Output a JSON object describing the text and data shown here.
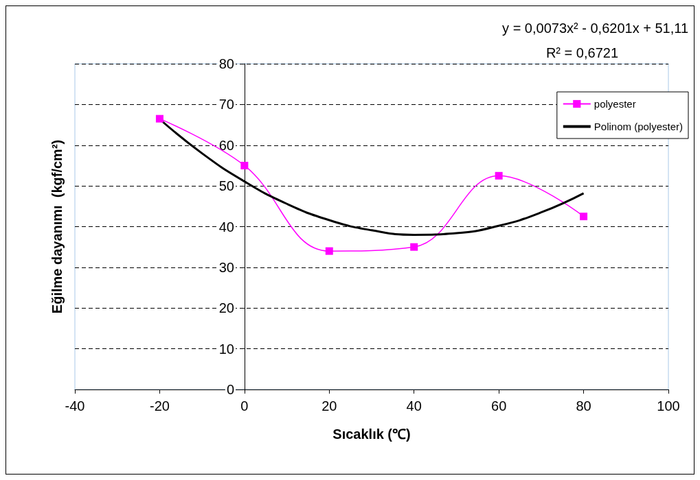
{
  "chart_data": {
    "type": "line",
    "xlabel": "Sıcaklık (℃)",
    "ylabel": "Eğilme dayanımı  (kgf/cm²)",
    "annotations": [
      "y = 0,0073x² - 0,6201x + 51,11",
      "R² = 0,6721"
    ],
    "series": [
      {
        "name": "polyester",
        "color": "#ff00ff",
        "marker": "square",
        "x": [
          -20,
          0,
          20,
          40,
          60,
          80
        ],
        "values": [
          66.5,
          55,
          34,
          35,
          52.5,
          42.5
        ]
      },
      {
        "name": "Polinom (polyester)",
        "color": "#000000",
        "marker": "none",
        "x": [
          -20,
          -10,
          0,
          10,
          20,
          30,
          40,
          50,
          60,
          70,
          80
        ],
        "values": [
          66.4,
          58,
          51.1,
          45.6,
          41.6,
          39.1,
          38,
          38.4,
          40.2,
          43.5,
          48.2
        ]
      }
    ],
    "xlim": [
      -40,
      100
    ],
    "xticks": [
      -40,
      -20,
      0,
      20,
      40,
      60,
      80,
      100
    ],
    "ylim": [
      0,
      80
    ],
    "yticks": [
      0,
      10,
      20,
      30,
      40,
      50,
      60,
      70,
      80
    ],
    "grid": "y",
    "legend": "top right"
  }
}
